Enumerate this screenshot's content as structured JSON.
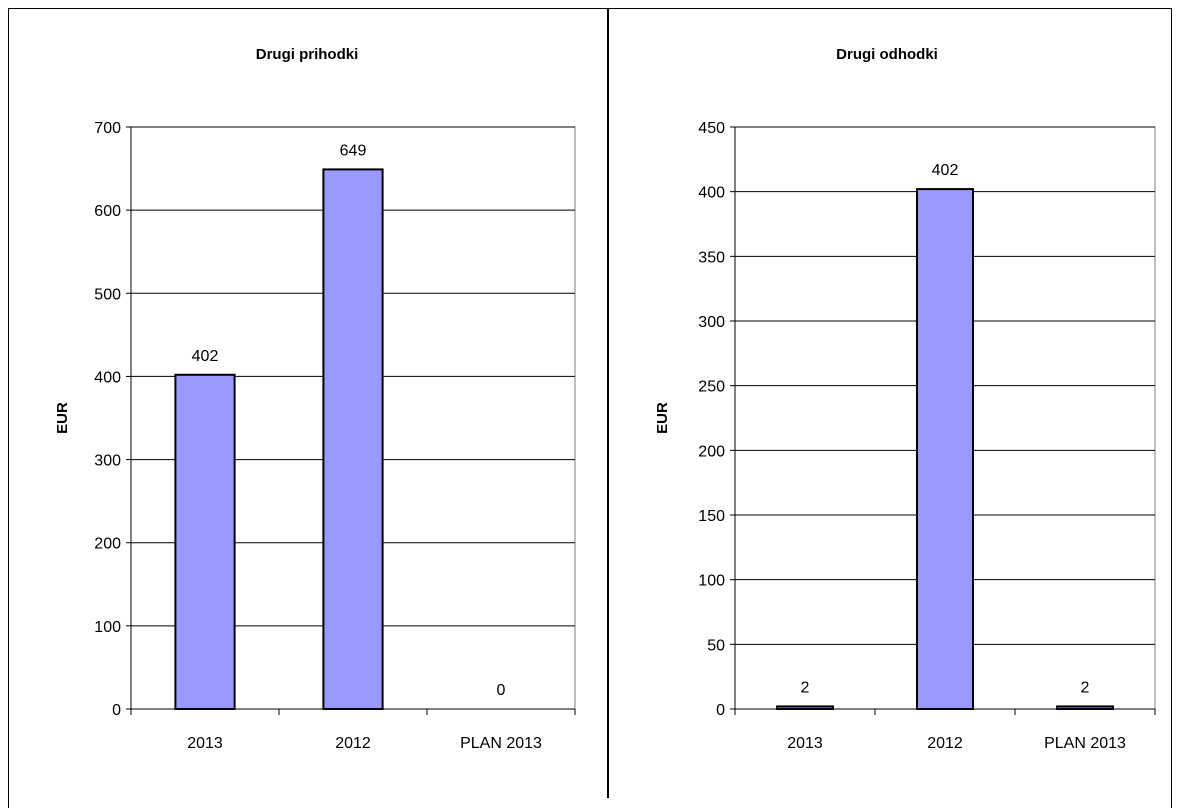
{
  "chart_data": [
    {
      "type": "bar",
      "title": "Drugi prihodki",
      "xlabel": "",
      "ylabel": "EUR",
      "categories": [
        "2013",
        "2012",
        "PLAN 2013"
      ],
      "values": [
        402,
        649,
        0
      ],
      "data_labels": [
        "402",
        "649",
        "0"
      ],
      "ylim": [
        0,
        700
      ],
      "yticks": [
        0,
        100,
        200,
        300,
        400,
        500,
        600,
        700
      ],
      "grid": true,
      "bar_color": "#9999FF",
      "legend": "none"
    },
    {
      "type": "bar",
      "title": "Drugi odhodki",
      "xlabel": "",
      "ylabel": "EUR",
      "categories": [
        "2013",
        "2012",
        "PLAN 2013"
      ],
      "values": [
        2,
        402,
        2
      ],
      "data_labels": [
        "2",
        "402",
        "2"
      ],
      "ylim": [
        0,
        450
      ],
      "yticks": [
        0,
        50,
        100,
        150,
        200,
        250,
        300,
        350,
        400,
        450
      ],
      "grid": true,
      "bar_color": "#9999FF",
      "legend": "none"
    }
  ]
}
